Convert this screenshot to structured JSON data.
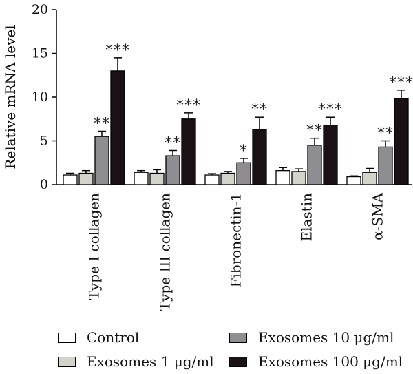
{
  "chart_data": {
    "type": "bar",
    "title": "",
    "xlabel": "",
    "ylabel": "Relative mRNA level",
    "ylim": [
      0,
      20
    ],
    "yticks": [
      0,
      5,
      10,
      15,
      20
    ],
    "grid": false,
    "legend_position": "bottom",
    "categories": [
      "Type I collagen",
      "Type III collagen",
      "Fibronectin-1",
      "Elastin",
      "α-SMA"
    ],
    "series": [
      {
        "name": "Control",
        "color": "#ffffff",
        "values": [
          1.1,
          1.4,
          1.1,
          1.6,
          0.9
        ],
        "errors": [
          0.2,
          0.2,
          0.15,
          0.35,
          0.1
        ],
        "annotations": [
          "",
          "",
          "",
          "",
          ""
        ]
      },
      {
        "name": "Exosomes 1 μg/ml",
        "color": "#d3d3cc",
        "values": [
          1.3,
          1.3,
          1.3,
          1.5,
          1.4
        ],
        "errors": [
          0.3,
          0.4,
          0.2,
          0.3,
          0.45
        ],
        "annotations": [
          "",
          "",
          "",
          "",
          ""
        ]
      },
      {
        "name": "Exosomes 10 μg/ml",
        "color": "#8e8e92",
        "values": [
          5.5,
          3.3,
          2.5,
          4.5,
          4.3
        ],
        "errors": [
          0.6,
          0.6,
          0.5,
          0.8,
          0.7
        ],
        "annotations": [
          "**",
          "**",
          "*",
          "**",
          "**"
        ]
      },
      {
        "name": "Exosomes 100 μg/ml",
        "color": "#1a1116",
        "values": [
          13.0,
          7.5,
          6.3,
          6.8,
          9.8
        ],
        "errors": [
          1.5,
          0.7,
          1.4,
          0.9,
          1.0
        ],
        "annotations": [
          "***",
          "***",
          "**",
          "***",
          "***"
        ]
      }
    ]
  },
  "legend": {
    "control": "Control",
    "exo1": "Exosomes 1 μg/ml",
    "exo10": "Exosomes 10 μg/ml",
    "exo100": "Exosomes 100 μg/ml"
  }
}
